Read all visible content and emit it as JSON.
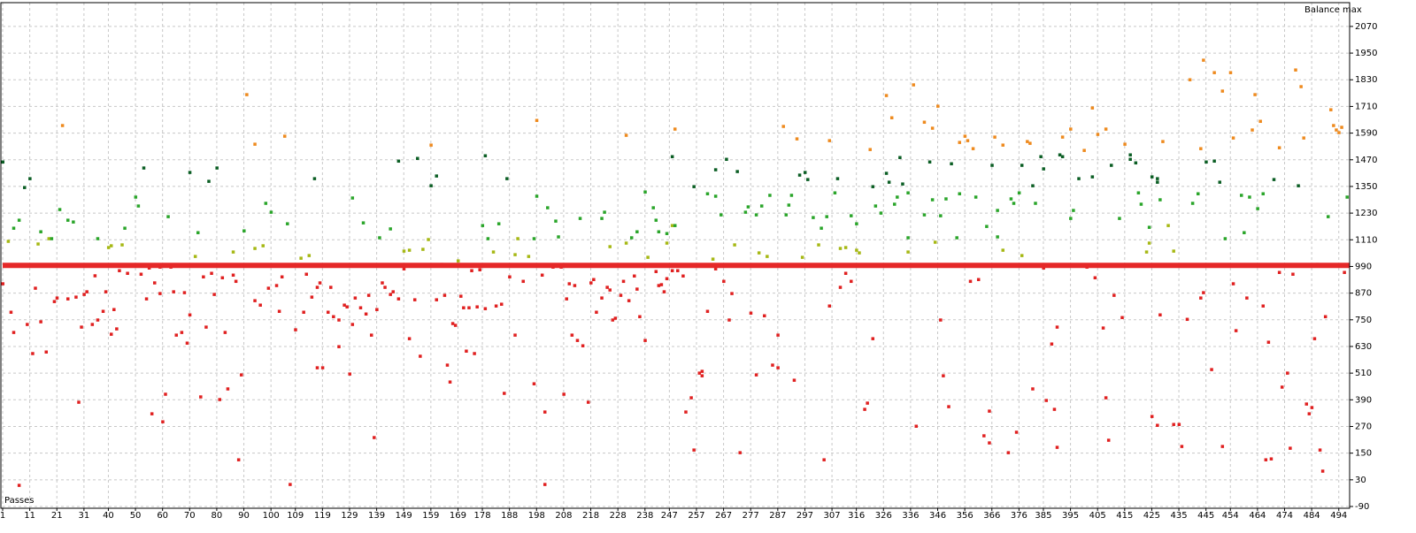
{
  "chart_data": {
    "type": "scatter",
    "y_label": "Balance max",
    "x_label": "Passes",
    "xlim": [
      1,
      498
    ],
    "ylim": [
      -90,
      2177
    ],
    "xticks": [
      1,
      11,
      21,
      31,
      40,
      50,
      60,
      70,
      80,
      90,
      100,
      109,
      119,
      129,
      139,
      149,
      159,
      169,
      178,
      188,
      198,
      208,
      218,
      228,
      238,
      247,
      257,
      267,
      277,
      287,
      297,
      307,
      316,
      326,
      336,
      346,
      356,
      366,
      376,
      385,
      395,
      405,
      415,
      425,
      435,
      445,
      454,
      464,
      474,
      484,
      494
    ],
    "yticks": [
      2070,
      1950,
      1830,
      1710,
      1590,
      1470,
      1350,
      1230,
      1110,
      990,
      870,
      750,
      630,
      510,
      390,
      270,
      150,
      30,
      -90
    ],
    "grid": true,
    "series": [
      {
        "color": "#e02020",
        "mode": "points",
        "x": [
          1,
          4,
          5,
          7,
          10,
          12,
          13,
          15,
          17,
          20,
          21,
          25,
          28,
          29,
          30,
          31,
          32,
          34,
          35,
          36,
          38,
          39,
          41,
          42,
          43,
          44,
          47,
          52,
          54,
          55,
          56,
          57,
          59,
          59,
          60,
          61,
          63,
          64,
          65,
          67,
          68,
          69,
          70,
          74,
          75,
          76,
          78,
          79,
          81,
          82,
          83,
          84,
          86,
          87,
          88,
          89,
          94,
          96,
          99,
          102,
          103,
          104,
          107,
          109,
          110,
          112,
          113,
          115,
          117,
          117,
          119,
          118,
          121,
          122,
          123,
          125,
          125,
          127,
          128,
          129,
          130,
          131,
          133,
          135,
          136,
          137,
          138,
          139,
          141,
          142,
          144,
          145,
          147,
          149,
          151,
          153,
          155,
          161,
          163,
          164,
          165,
          166,
          167,
          168,
          170,
          171,
          172,
          173,
          174,
          175,
          176,
          177,
          179,
          183,
          185,
          186,
          188,
          190,
          193,
          197,
          200,
          201,
          201,
          204,
          207,
          208,
          209,
          210,
          211,
          212,
          213,
          215,
          217,
          218,
          219,
          220,
          222,
          224,
          225,
          226,
          227,
          229,
          230,
          232,
          234,
          235,
          236,
          238,
          242,
          243,
          244,
          245,
          246,
          248,
          250,
          252,
          253,
          255,
          256,
          258,
          259,
          259,
          261,
          264,
          267,
          269,
          270,
          273,
          274,
          276,
          277,
          279,
          282,
          285,
          287,
          287,
          293,
          304,
          306,
          310,
          312,
          314,
          319,
          320,
          322,
          338,
          347,
          348,
          350,
          358,
          361,
          363,
          365,
          365,
          372,
          375,
          381,
          385,
          386,
          388,
          389,
          390,
          390,
          401,
          404,
          407,
          408,
          409,
          411,
          414,
          425,
          427,
          428,
          433,
          435,
          436,
          438,
          443,
          444,
          447,
          451,
          455,
          456,
          460,
          466,
          467,
          468,
          469,
          472,
          473,
          475,
          476,
          477,
          482,
          483,
          484,
          485,
          486,
          487,
          488,
          489,
          496
        ],
        "values": [
          913,
          785,
          694,
          6,
          730,
          599,
          893,
          742,
          606,
          833,
          849,
          845,
          853,
          380,
          718,
          865,
          877,
          730,
          949,
          750,
          789,
          877,
          686,
          797,
          710,
          972,
          960,
          956,
          845,
          984,
          328,
          917,
          988,
          869,
          292,
          416,
          988,
          877,
          682,
          694,
          873,
          646,
          773,
          404,
          944,
          718,
          960,
          865,
          392,
          940,
          694,
          440,
          952,
          924,
          121,
          503,
          837,
          817,
          893,
          905,
          789,
          944,
          10,
          706,
          996,
          785,
          956,
          853,
          897,
          535,
          535,
          917,
          785,
          897,
          765,
          750,
          630,
          817,
          809,
          507,
          730,
          849,
          805,
          777,
          861,
          682,
          221,
          797,
          917,
          897,
          865,
          877,
          845,
          980,
          666,
          841,
          587,
          841,
          1000,
          861,
          547,
          471,
          734,
          726,
          857,
          805,
          610,
          805,
          972,
          599,
          809,
          976,
          801,
          813,
          821,
          420,
          944,
          682,
          924,
          463,
          952,
          10,
          336,
          988,
          988,
          416,
          845,
          913,
          682,
          905,
          658,
          634,
          380,
          917,
          932,
          785,
          849,
          897,
          885,
          750,
          758,
          861,
          924,
          837,
          948,
          889,
          765,
          658,
          968,
          905,
          909,
          877,
          936,
          972,
          972,
          948,
          336,
          400,
          165,
          511,
          499,
          519,
          789,
          980,
          924,
          750,
          869,
          153,
          996,
          996,
          781,
          503,
          769,
          547,
          535,
          682,
          479,
          121,
          813,
          897,
          960,
          924,
          348,
          376,
          666,
          272,
          750,
          499,
          360,
          924,
          932,
          229,
          340,
          197,
          153,
          245,
          440,
          984,
          388,
          642,
          348,
          177,
          718,
          988,
          940,
          714,
          400,
          209,
          861,
          761,
          316,
          276,
          773,
          280,
          280,
          181,
          753,
          849,
          873,
          527,
          181,
          913,
          702,
          849,
          813,
          121,
          650,
          125,
          964,
          448,
          511,
          173,
          956,
          372,
          328,
          356,
          666,
          1000,
          165,
          70,
          765,
          964
        ]
      },
      {
        "color": "#e52828",
        "mode": "line",
        "x": [
          1,
          498
        ],
        "values": [
          995,
          995
        ]
      },
      {
        "color": "#a6b814",
        "mode": "points",
        "x": [
          3,
          14,
          18,
          40,
          41,
          45,
          72,
          86,
          94,
          97,
          111,
          114,
          149,
          151,
          156,
          158,
          169,
          182,
          190,
          191,
          195,
          225,
          231,
          239,
          246,
          248,
          263,
          271,
          280,
          283,
          296,
          302,
          310,
          312,
          316,
          317,
          335,
          345,
          370,
          377,
          423,
          424,
          431,
          433
        ],
        "values": [
          1104,
          1092,
          1116,
          1076,
          1084,
          1088,
          1036,
          1056,
          1072,
          1084,
          1028,
          1040,
          1060,
          1064,
          1068,
          1112,
          1016,
          1056,
          1044,
          1116,
          1036,
          1080,
          1096,
          1032,
          1096,
          1175,
          1024,
          1088,
          1052,
          1036,
          1032,
          1088,
          1072,
          1076,
          1064,
          1052,
          1056,
          1100,
          1064,
          1040,
          1056,
          1096,
          1175,
          1060
        ]
      },
      {
        "color": "#2aa52a",
        "mode": "points",
        "x": [
          5,
          7,
          15,
          19,
          22,
          25,
          27,
          36,
          46,
          50,
          51,
          62,
          73,
          90,
          98,
          100,
          106,
          130,
          134,
          140,
          144,
          178,
          180,
          184,
          197,
          198,
          202,
          205,
          206,
          214,
          222,
          223,
          233,
          235,
          238,
          241,
          242,
          243,
          246,
          249,
          261,
          264,
          266,
          275,
          276,
          279,
          281,
          284,
          290,
          291,
          292,
          300,
          303,
          305,
          308,
          314,
          316,
          323,
          325,
          330,
          331,
          335,
          335,
          341,
          344,
          347,
          349,
          353,
          354,
          360,
          364,
          368,
          368,
          373,
          374,
          376,
          382,
          395,
          396,
          413,
          420,
          421,
          424,
          428,
          440,
          442,
          452,
          458,
          459,
          461,
          464,
          466,
          490,
          497
        ],
        "values": [
          1163,
          1199,
          1147,
          1116,
          1247,
          1199,
          1191,
          1116,
          1163,
          1303,
          1263,
          1215,
          1143,
          1151,
          1275,
          1235,
          1183,
          1299,
          1187,
          1120,
          1160,
          1175,
          1116,
          1183,
          1116,
          1307,
          1255,
          1195,
          1124,
          1207,
          1207,
          1235,
          1120,
          1147,
          1326,
          1255,
          1199,
          1147,
          1139,
          1175,
          1318,
          1307,
          1223,
          1235,
          1259,
          1223,
          1263,
          1311,
          1223,
          1267,
          1311,
          1211,
          1163,
          1215,
          1322,
          1219,
          1183,
          1263,
          1231,
          1271,
          1303,
          1322,
          1120,
          1223,
          1291,
          1219,
          1295,
          1120,
          1318,
          1303,
          1171,
          1243,
          1124,
          1295,
          1275,
          1322,
          1275,
          1207,
          1243,
          1207,
          1322,
          1271,
          1167,
          1291,
          1275,
          1318,
          1116,
          1311,
          1143,
          1303,
          1251,
          1318,
          1215,
          1303
        ]
      },
      {
        "color": "#0b5e24",
        "mode": "points",
        "x": [
          1,
          9,
          11,
          53,
          70,
          77,
          80,
          116,
          147,
          154,
          159,
          161,
          179,
          187,
          248,
          256,
          264,
          268,
          272,
          295,
          297,
          298,
          309,
          322,
          327,
          328,
          332,
          333,
          343,
          351,
          366,
          377,
          381,
          384,
          385,
          391,
          392,
          398,
          403,
          410,
          417,
          417,
          419,
          425,
          427,
          427,
          445,
          448,
          450,
          470,
          479
        ],
        "values": [
          1461,
          1346,
          1386,
          1434,
          1414,
          1374,
          1434,
          1386,
          1465,
          1477,
          1354,
          1398,
          1489,
          1386,
          1485,
          1350,
          1426,
          1473,
          1418,
          1402,
          1414,
          1382,
          1386,
          1350,
          1410,
          1370,
          1481,
          1362,
          1461,
          1453,
          1446,
          1446,
          1354,
          1485,
          1430,
          1493,
          1485,
          1386,
          1394,
          1446,
          1493,
          1473,
          1457,
          1394,
          1370,
          1386,
          1461,
          1465,
          1370,
          1382,
          1354
        ]
      },
      {
        "color": "#ee8a1e",
        "mode": "points",
        "x": [
          23,
          91,
          94,
          105,
          159,
          198,
          231,
          249,
          289,
          294,
          306,
          321,
          327,
          329,
          337,
          341,
          344,
          346,
          354,
          356,
          357,
          359,
          367,
          370,
          379,
          380,
          392,
          395,
          400,
          403,
          405,
          408,
          415,
          429,
          439,
          443,
          444,
          448,
          451,
          454,
          455,
          462,
          463,
          465,
          472,
          478,
          480,
          481,
          491,
          492,
          493,
          494,
          495
        ],
        "values": [
          1625,
          1764,
          1541,
          1577,
          1537,
          1648,
          1581,
          1609,
          1621,
          1565,
          1557,
          1517,
          1760,
          1660,
          1808,
          1640,
          1613,
          1712,
          1549,
          1577,
          1557,
          1521,
          1573,
          1537,
          1553,
          1545,
          1573,
          1609,
          1513,
          1704,
          1585,
          1609,
          1541,
          1553,
          1831,
          1521,
          1919,
          1863,
          1780,
          1863,
          1569,
          1605,
          1764,
          1644,
          1525,
          1875,
          1800,
          1569,
          1696,
          1625,
          1605,
          1593,
          1617
        ]
      }
    ]
  }
}
